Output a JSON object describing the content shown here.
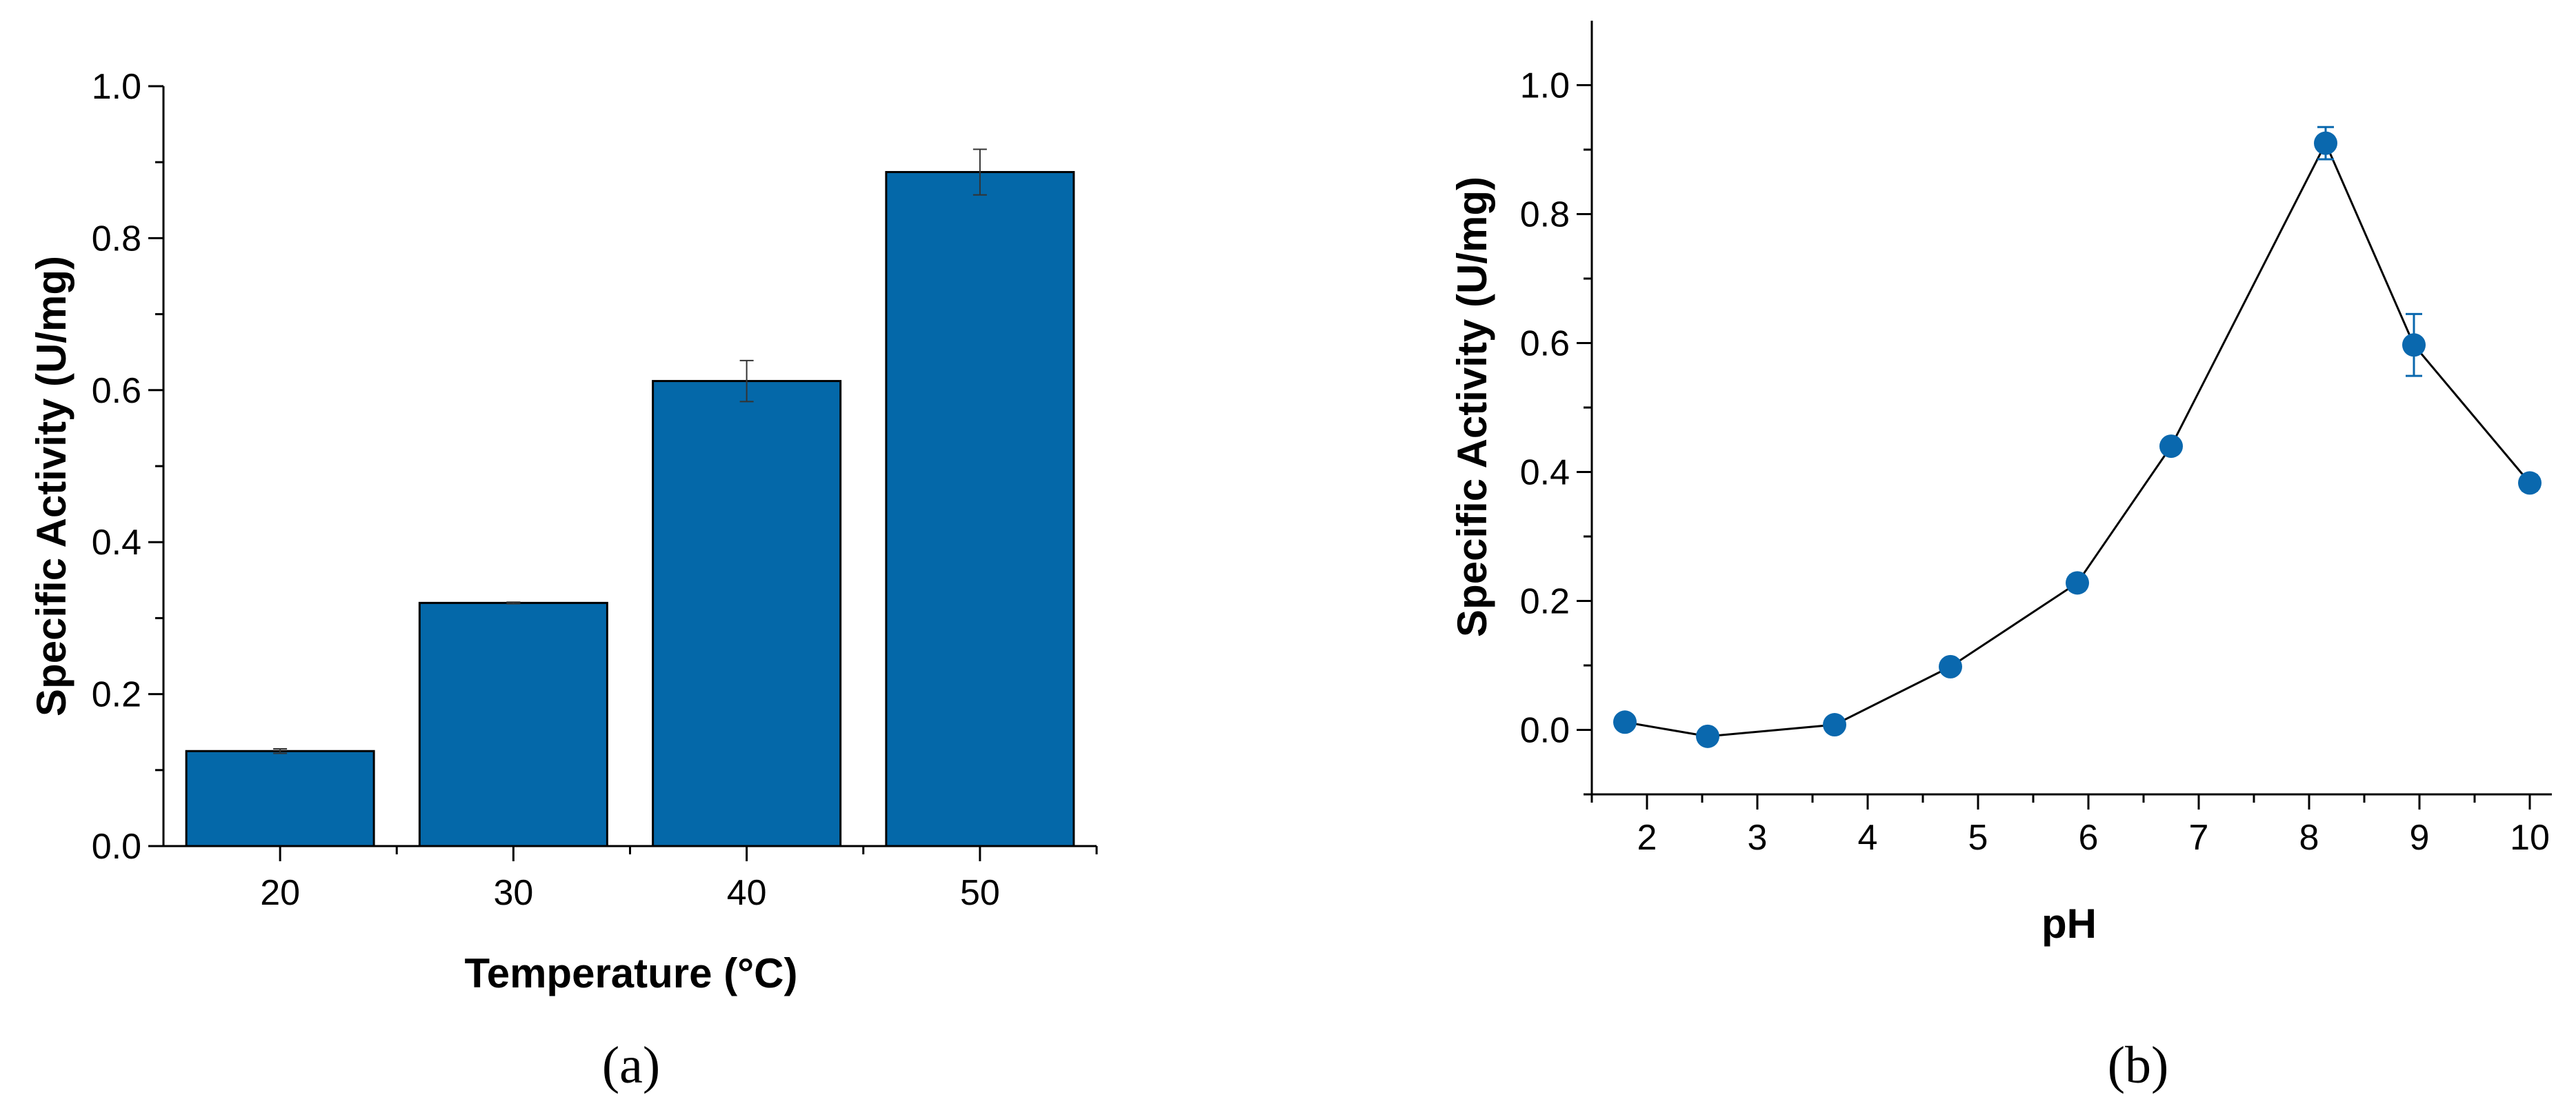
{
  "colors": {
    "bar_fill": "#0468A9",
    "marker_fill": "#0A68AE",
    "line": "#000000",
    "axis": "#000000"
  },
  "chart_data": [
    {
      "panel_label": "(a)",
      "type": "bar",
      "xlabel": "Temperature (°C)",
      "ylabel": "Specific Activity (U/mg)",
      "categories": [
        "20",
        "30",
        "40",
        "50"
      ],
      "values": [
        0.125,
        0.32,
        0.612,
        0.887
      ],
      "errors": [
        0.003,
        0.001,
        0.027,
        0.03
      ],
      "ylim": [
        0.0,
        1.0
      ],
      "yticks": [
        "0.0",
        "0.2",
        "0.4",
        "0.6",
        "0.8",
        "1.0"
      ],
      "grid": false
    },
    {
      "panel_label": "(b)",
      "type": "line",
      "xlabel": "pH",
      "ylabel": "Specific Activity (U/mg)",
      "x": [
        1.8,
        2.55,
        3.7,
        4.75,
        5.9,
        6.75,
        8.15,
        8.95,
        10.0
      ],
      "y": [
        0.012,
        -0.01,
        0.008,
        0.098,
        0.228,
        0.44,
        0.91,
        0.597,
        0.383
      ],
      "errors": [
        0.005,
        0.006,
        0.004,
        0.006,
        0.012,
        0.01,
        0.025,
        0.048,
        0.012
      ],
      "xlim": [
        1.5,
        10.2
      ],
      "ylim": [
        -0.1,
        1.1
      ],
      "xticks": [
        "2",
        "3",
        "4",
        "5",
        "6",
        "7",
        "8",
        "9",
        "10"
      ],
      "yticks": [
        "0.0",
        "0.2",
        "0.4",
        "0.6",
        "0.8",
        "1.0"
      ],
      "grid": false
    }
  ]
}
